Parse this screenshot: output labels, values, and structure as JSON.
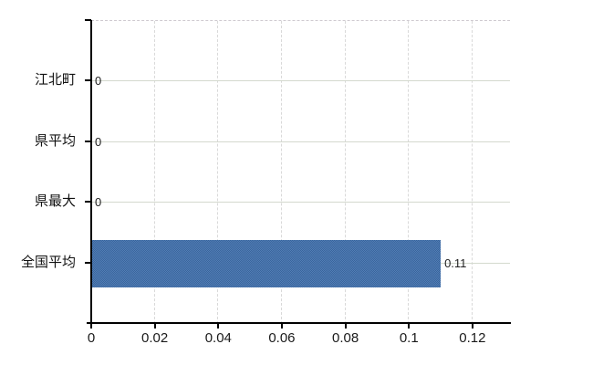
{
  "chart_data": {
    "type": "bar",
    "orientation": "horizontal",
    "title": "",
    "xlabel": "",
    "ylabel": "",
    "categories": [
      "江北町",
      "県平均",
      "県最大",
      "全国平均"
    ],
    "values": [
      0,
      0,
      0,
      0.11
    ],
    "value_labels": [
      "0",
      "0",
      "0",
      "0.11"
    ],
    "xticks": [
      0,
      0.02,
      0.04,
      0.06,
      0.08,
      0.1,
      0.12
    ],
    "xtick_labels": [
      "0",
      "0.02",
      "0.04",
      "0.06",
      "0.08",
      "0.1",
      "0.12"
    ],
    "xlim": [
      0,
      0.1318
    ],
    "grid": true,
    "legend": false,
    "colors": {
      "bar": "#3f6fad",
      "axis": "#000000",
      "grid_vertical": "#d9d9d9",
      "grid_horizontal": "#d4d9ce",
      "plot_top_border": "#cfcad0",
      "text": "#111111",
      "background": "#ffffff"
    }
  }
}
